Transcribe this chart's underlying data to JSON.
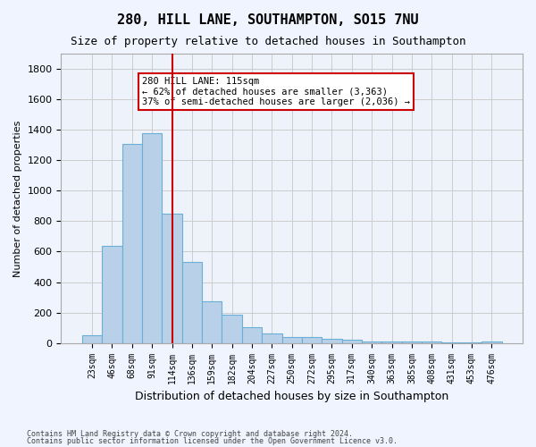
{
  "title1": "280, HILL LANE, SOUTHAMPTON, SO15 7NU",
  "title2": "Size of property relative to detached houses in Southampton",
  "xlabel": "Distribution of detached houses by size in Southampton",
  "ylabel": "Number of detached properties",
  "bar_color": "#b8d0e8",
  "bar_edge_color": "#6baed6",
  "vline_color": "#cc0000",
  "vline_x": 4,
  "annotation_text": "280 HILL LANE: 115sqm\n← 62% of detached houses are smaller (3,363)\n37% of semi-detached houses are larger (2,036) →",
  "annotation_box_color": "#ffffff",
  "annotation_box_edge": "#cc0000",
  "footer1": "Contains HM Land Registry data © Crown copyright and database right 2024.",
  "footer2": "Contains public sector information licensed under the Open Government Licence v3.0.",
  "categories": [
    "23sqm",
    "46sqm",
    "68sqm",
    "91sqm",
    "114sqm",
    "136sqm",
    "159sqm",
    "182sqm",
    "204sqm",
    "227sqm",
    "250sqm",
    "272sqm",
    "295sqm",
    "317sqm",
    "340sqm",
    "363sqm",
    "385sqm",
    "408sqm",
    "431sqm",
    "453sqm",
    "476sqm"
  ],
  "values": [
    50,
    640,
    1310,
    1380,
    850,
    530,
    275,
    185,
    105,
    65,
    38,
    38,
    30,
    20,
    10,
    10,
    10,
    10,
    5,
    5,
    10
  ],
  "ylim": [
    0,
    1900
  ],
  "yticks": [
    0,
    200,
    400,
    600,
    800,
    1000,
    1200,
    1400,
    1600,
    1800
  ],
  "grid_color": "#cccccc",
  "background_color": "#f0f4ff",
  "plot_bg_color": "#eef2fb"
}
